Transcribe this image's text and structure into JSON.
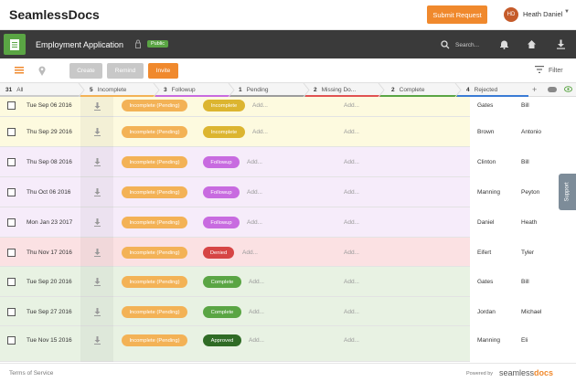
{
  "topbar": {
    "brand": "SeamlessDocs",
    "submit_label": "Submit Request",
    "user_initials": "HD",
    "user_name": "Heath Daniel"
  },
  "appbar": {
    "title": "Employment Application",
    "badge": "Public",
    "search_placeholder": "Search..."
  },
  "toolbar": {
    "create_label": "Create",
    "remind_label": "Remind",
    "invite_label": "Invite",
    "filter_label": "Filter"
  },
  "tabs": [
    {
      "count": "31",
      "label": "All",
      "color": "#cccccc"
    },
    {
      "count": "5",
      "label": "Incomplete",
      "color": "#f3b256"
    },
    {
      "count": "3",
      "label": "Followup",
      "color": "#c86be0"
    },
    {
      "count": "1",
      "label": "Pending",
      "color": "#9c9c9c"
    },
    {
      "count": "2",
      "label": "Missing Do...",
      "color": "#e05252"
    },
    {
      "count": "2",
      "label": "Complete",
      "color": "#5aa544"
    },
    {
      "count": "4",
      "label": "Rejected",
      "color": "#3a7bd5"
    }
  ],
  "rows": [
    {
      "date": "Tue Sep 06 2016",
      "stage": "Incomplete (Pending)",
      "status": "Incomplete",
      "add1": "Add...",
      "add2": "Add...",
      "last": "Gates",
      "first": "Bill",
      "bg": "#fdfadf",
      "status_color": "#dcb530"
    },
    {
      "date": "Thu Sep 29 2016",
      "stage": "Incomplete (Pending)",
      "status": "Incomplete",
      "add1": "Add...",
      "add2": "Add...",
      "last": "Brown",
      "first": "Antonio",
      "bg": "#fdfadf",
      "status_color": "#dcb530"
    },
    {
      "date": "Thu Sep 08 2016",
      "stage": "Incomplete (Pending)",
      "status": "Followup",
      "add1": "Add...",
      "add2": "Add...",
      "last": "Clinton",
      "first": "Bill",
      "bg": "#f6ecfa",
      "status_color": "#c86be0"
    },
    {
      "date": "Thu Oct 06 2016",
      "stage": "Incomplete (Pending)",
      "status": "Followup",
      "add1": "Add...",
      "add2": "Add...",
      "last": "Manning",
      "first": "Peyton",
      "bg": "#f6ecfa",
      "status_color": "#c86be0"
    },
    {
      "date": "Mon Jan 23 2017",
      "stage": "Incomplete (Pending)",
      "status": "Followup",
      "add1": "Add...",
      "add2": "Add...",
      "last": "Daniel",
      "first": "Heath",
      "bg": "#f6ecfa",
      "status_color": "#c86be0"
    },
    {
      "date": "Thu Nov 17 2016",
      "stage": "Incomplete (Pending)",
      "status": "Denied",
      "add1": "Add...",
      "add2": "Add...",
      "last": "Eifert",
      "first": "Tyler",
      "bg": "#fbe1e3",
      "status_color": "#d64545"
    },
    {
      "date": "Tue Sep 20 2016",
      "stage": "Incomplete (Pending)",
      "status": "Complete",
      "add1": "Add...",
      "add2": "Add...",
      "last": "Gates",
      "first": "Bill",
      "bg": "#e8f2e3",
      "status_color": "#5aa544"
    },
    {
      "date": "Tue Sep 27 2016",
      "stage": "Incomplete (Pending)",
      "status": "Complete",
      "add1": "Add...",
      "add2": "Add...",
      "last": "Jordan",
      "first": "Michael",
      "bg": "#e8f2e3",
      "status_color": "#5aa544"
    },
    {
      "date": "Tue Nov 15 2016",
      "stage": "Incomplete (Pending)",
      "status": "Approved",
      "add1": "Add...",
      "add2": "Add...",
      "last": "Manning",
      "first": "Eli",
      "bg": "#e8f2e3",
      "status_color": "#2f6b25"
    }
  ],
  "support_label": "Support",
  "footer": {
    "terms": "Terms of Service",
    "powered": "Powered by",
    "brand_a": "seamless",
    "brand_b": "docs"
  }
}
